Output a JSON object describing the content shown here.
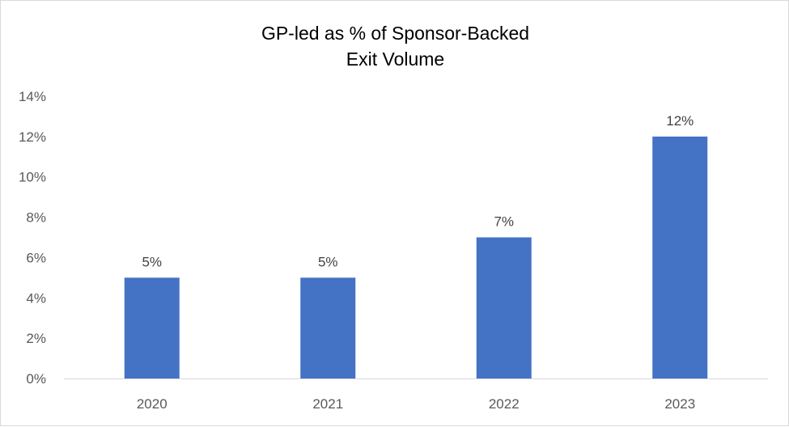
{
  "chart_data": {
    "type": "bar",
    "title_lines": [
      "GP-led as % of Sponsor-Backed",
      "Exit Volume"
    ],
    "categories": [
      "2020",
      "2021",
      "2022",
      "2023"
    ],
    "values": [
      5,
      5,
      7,
      12
    ],
    "data_labels": [
      "5%",
      "5%",
      "7%",
      "12%"
    ],
    "ylim": [
      0,
      14
    ],
    "y_ticks": [
      0,
      2,
      4,
      6,
      8,
      10,
      12,
      14
    ],
    "y_tick_labels": [
      "0%",
      "2%",
      "4%",
      "6%",
      "8%",
      "10%",
      "12%",
      "14%"
    ],
    "xlabel": "",
    "ylabel": "",
    "grid": false,
    "legend": "none",
    "bar_color": "#4472C4",
    "axis_color": "#d9d9d9"
  }
}
